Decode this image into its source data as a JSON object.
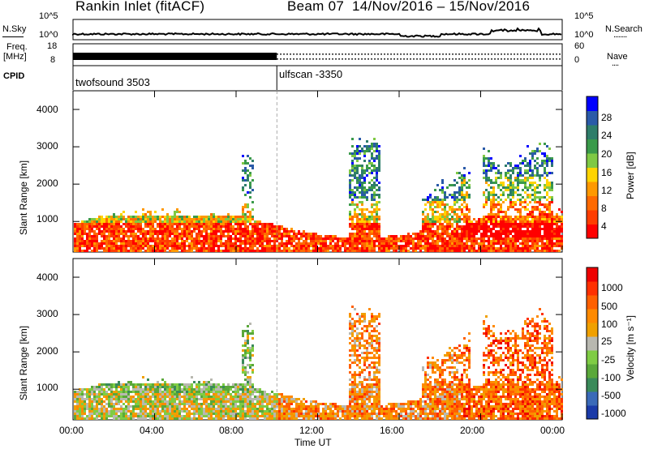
{
  "header": {
    "station": "Rankin Inlet (fitACF)",
    "beam": "Beam 07",
    "date_range": "14/Nov/2016 – 15/Nov/2016"
  },
  "noise_panel": {
    "left_label": "N.Sky",
    "right_label": "N.Search",
    "right_legend": "........",
    "left_ticks": [
      "10^5",
      "10^0"
    ],
    "right_ticks": [
      "10^5",
      "10^0"
    ]
  },
  "freq_panel": {
    "left_label_1": "Freq.",
    "left_label_2": "[MHz]",
    "right_label": "Nave",
    "right_legend": "....",
    "left_ticks": [
      "18",
      "8"
    ],
    "right_ticks": [
      "60",
      "0"
    ]
  },
  "cpid_panel": {
    "label": "CPID",
    "segments": [
      {
        "name": "twofsound 3503",
        "start_hour": 0
      },
      {
        "name": "ulfscan -3350",
        "start_hour": 10
      }
    ]
  },
  "chart_data": [
    {
      "type": "heatmap",
      "panel": "power",
      "ylabel": "Slant Range [km]",
      "y_ticks": [
        "4000",
        "3000",
        "2000",
        "1000"
      ],
      "ylim": [
        180,
        4500
      ],
      "xlim": [
        0,
        24
      ],
      "colorbar": {
        "label": "Power [dB]",
        "ticks": [
          "28",
          "24",
          "20",
          "16",
          "12",
          "8",
          "4"
        ],
        "colors": [
          "#ff0000",
          "#ff3d00",
          "#ff6a00",
          "#ff9900",
          "#ffd400",
          "#7fc944",
          "#3a9a4a",
          "#2e7d6a",
          "#2a5aa8",
          "#0000ff"
        ]
      }
    },
    {
      "type": "heatmap",
      "panel": "velocity",
      "ylabel": "Slant Range [km]",
      "y_ticks": [
        "4000",
        "3000",
        "2000",
        "1000"
      ],
      "ylim": [
        180,
        4500
      ],
      "xlim": [
        0,
        24
      ],
      "xlabel": "Time UT",
      "x_ticks": [
        "00:00",
        "04:00",
        "08:00",
        "12:00",
        "16:00",
        "20:00",
        "00:00"
      ],
      "colorbar": {
        "label": "Velocity [m s⁻¹]",
        "ticks": [
          "1000",
          "500",
          "100",
          "25",
          "-25",
          "-100",
          "-500",
          "-1000"
        ],
        "colors": [
          "#1a3aa8",
          "#3a6ab8",
          "#3a8a5a",
          "#5aa83a",
          "#7fcc44",
          "#b8b8b0",
          "#f0a000",
          "#ff8a00",
          "#ff6000",
          "#ff3000",
          "#ee0000"
        ]
      }
    }
  ]
}
